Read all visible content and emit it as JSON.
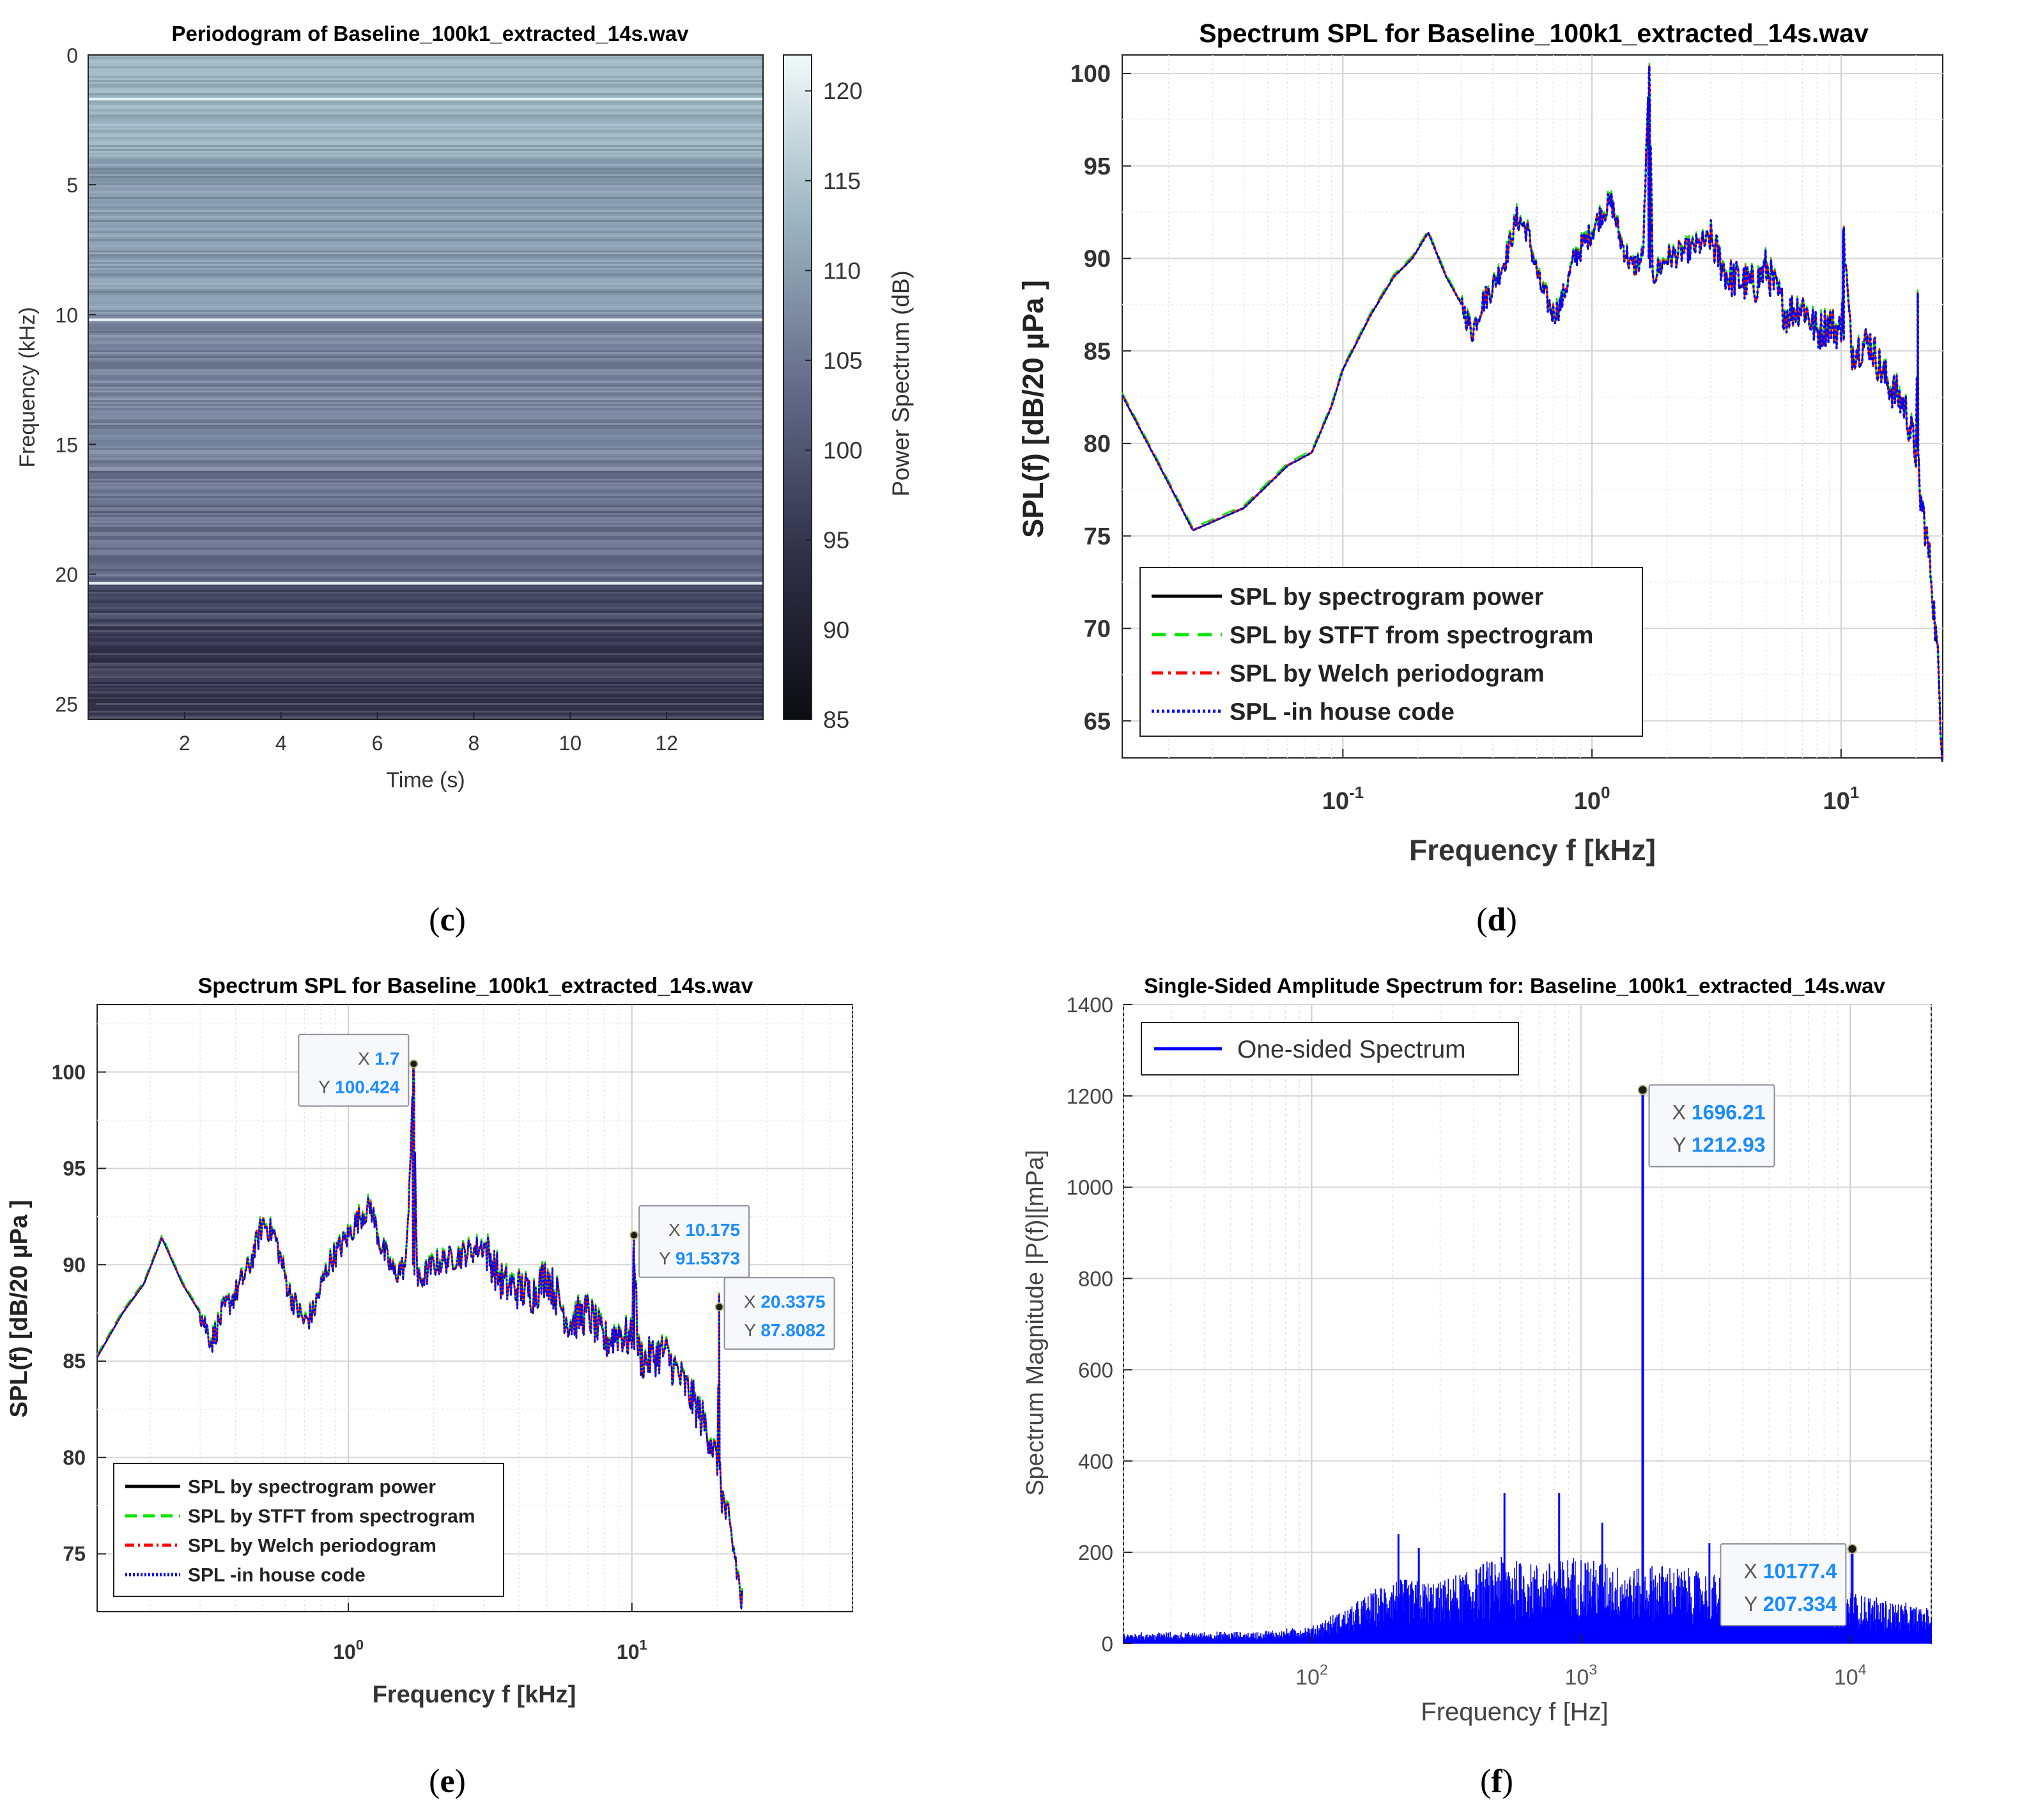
{
  "chart_data": [
    {
      "panel": "c",
      "type": "heatmap",
      "title": "Periodogram of Baseline_100k1_extracted_14s.wav",
      "xlabel": "Time (s)",
      "ylabel": "Frequency (kHz)",
      "colorbar_label": "Power Spectrum (dB)",
      "xlim": [
        0,
        14
      ],
      "ylim": [
        0,
        25.6
      ],
      "xticks": [
        2,
        4,
        6,
        8,
        10,
        12
      ],
      "yticks": [
        0,
        5,
        10,
        15,
        20,
        25
      ],
      "clim": [
        85,
        122
      ],
      "cticks": [
        85,
        90,
        95,
        100,
        105,
        110,
        115,
        120
      ],
      "bands": [
        {
          "y0": 0,
          "y1": 4,
          "db": 113
        },
        {
          "y0": 4,
          "y1": 10,
          "db": 110
        },
        {
          "y0": 10,
          "y1": 16,
          "db": 107
        },
        {
          "y0": 16,
          "y1": 20.3,
          "db": 104
        },
        {
          "y0": 20.3,
          "y1": 22,
          "db": 98
        },
        {
          "y0": 22,
          "y1": 25.6,
          "db": 95
        }
      ],
      "tonal_lines_khz": [
        1.7,
        10.2,
        20.35
      ]
    },
    {
      "panel": "d",
      "type": "line",
      "xscale": "log",
      "title": "Spectrum SPL  for Baseline_100k1_extracted_14s.wav",
      "xlabel": "Frequency f [kHz]",
      "ylabel": "SPL(f) [dB/20 µPa ]",
      "xlim": [
        0.013,
        25.6
      ],
      "ylim": [
        63,
        101
      ],
      "xtick_values": [
        0.1,
        1,
        10
      ],
      "xtick_bases": [
        "10",
        "10",
        "10"
      ],
      "xtick_exps": [
        "-1",
        "0",
        "1"
      ],
      "yticks": [
        65,
        70,
        75,
        80,
        85,
        90,
        95,
        100
      ],
      "legend_position": "lower-left",
      "series": [
        {
          "name": "SPL by spectrogram power",
          "color": "#000000",
          "dash": ""
        },
        {
          "name": "SPL by STFT from spectrogram",
          "color": "#00e600",
          "dash": "22,14"
        },
        {
          "name": "SPL by Welch periodogram",
          "color": "#ff0000",
          "dash": "18,8,4,8"
        },
        {
          "name": "SPL -in house code",
          "color": "#0000ff",
          "dash": "4,4"
        }
      ],
      "curve": {
        "x": [
          0.013,
          0.018,
          0.025,
          0.04,
          0.06,
          0.075,
          0.09,
          0.1,
          0.13,
          0.16,
          0.19,
          0.22,
          0.26,
          0.3,
          0.33,
          0.36,
          0.4,
          0.45,
          0.5,
          0.55,
          0.62,
          0.7,
          0.75,
          0.85,
          1.0,
          1.1,
          1.2,
          1.3,
          1.45,
          1.6,
          1.7,
          1.75,
          2.0,
          2.5,
          3.0,
          3.5,
          4.5,
          5.0,
          6.0,
          7.0,
          8.0,
          9.0,
          10.0,
          10.2,
          11.0,
          13.0,
          15.0,
          18.0,
          20.0,
          20.34,
          20.5,
          21.5,
          23.0,
          24.5,
          25.5
        ],
        "y": [
          82.6,
          79,
          75.3,
          76.5,
          78.8,
          79.5,
          82,
          84,
          87,
          89,
          90,
          91.4,
          89,
          87.5,
          86,
          87.5,
          88.5,
          90,
          92.2,
          91.5,
          88.5,
          87,
          87.5,
          90,
          91.5,
          92.5,
          93,
          91,
          89.5,
          90,
          100.4,
          89,
          90,
          90.5,
          91,
          89,
          88.5,
          89.5,
          87,
          87.5,
          86,
          86.5,
          86,
          91.5,
          85,
          85.5,
          83.5,
          82,
          79.5,
          87.8,
          77.5,
          76,
          73,
          68,
          63.5
        ]
      },
      "noise_from_khz": 0.3
    },
    {
      "panel": "e",
      "type": "line",
      "xscale": "log",
      "title": "Spectrum SPL  for Baseline_100k1_extracted_14s.wav",
      "xlabel": "Frequency f [kHz]",
      "ylabel": "SPL(f) [dB/20 µPa ]",
      "xlim": [
        0.13,
        60
      ],
      "ylim": [
        72,
        103.5
      ],
      "xtick_values": [
        1,
        10
      ],
      "xtick_bases": [
        "10",
        "10"
      ],
      "xtick_exps": [
        "0",
        "1"
      ],
      "yticks": [
        75,
        80,
        85,
        90,
        95,
        100
      ],
      "legend_position": "lower-left",
      "series": [
        {
          "name": "SPL by spectrogram power",
          "color": "#000000",
          "dash": ""
        },
        {
          "name": "SPL by STFT from spectrogram",
          "color": "#00e600",
          "dash": "18,10"
        },
        {
          "name": "SPL by Welch periodogram",
          "color": "#ff0000",
          "dash": "14,6,3,6"
        },
        {
          "name": "SPL -in house code",
          "color": "#0000ff",
          "dash": "3,3"
        }
      ],
      "curve": {
        "x": [
          0.13,
          0.16,
          0.19,
          0.22,
          0.26,
          0.3,
          0.33,
          0.36,
          0.4,
          0.45,
          0.5,
          0.55,
          0.62,
          0.7,
          0.75,
          0.85,
          1.0,
          1.1,
          1.2,
          1.3,
          1.45,
          1.6,
          1.7,
          1.75,
          2.0,
          2.5,
          3.0,
          3.5,
          4.5,
          5.0,
          6.0,
          7.0,
          8.0,
          9.0,
          10.0,
          10.175,
          10.5,
          11.0,
          13.0,
          15.0,
          17.0,
          19.0,
          20.0,
          20.3375,
          20.5,
          21.5,
          23.0,
          24.5
        ],
        "y": [
          85.2,
          87.5,
          89,
          91.4,
          89,
          87.5,
          86,
          87.5,
          88.5,
          90,
          92.2,
          91.5,
          88.5,
          87,
          87.5,
          90,
          91.5,
          92.5,
          93,
          91,
          89.5,
          90,
          100.424,
          89,
          90,
          90.5,
          91,
          89,
          88.5,
          89.5,
          87,
          87.5,
          86,
          86.5,
          86,
          91.5373,
          85.5,
          85,
          85.5,
          84,
          82.5,
          81,
          79.5,
          87.8082,
          78.5,
          77,
          75,
          72.3
        ]
      },
      "noise_from_khz": 0.3,
      "datatips": [
        {
          "x_label": "X",
          "x_val": "1.7",
          "y_label": "Y",
          "y_val": "100.424",
          "fx": 1.7,
          "fy": 100.424,
          "side": "left"
        },
        {
          "x_label": "X",
          "x_val": "10.175",
          "y_label": "Y",
          "y_val": "91.5373",
          "fx": 10.175,
          "fy": 91.5373,
          "side": "right"
        },
        {
          "x_label": "X",
          "x_val": "20.3375",
          "y_label": "Y",
          "y_val": "87.8082",
          "fx": 20.3375,
          "fy": 87.8082,
          "side": "right"
        }
      ]
    },
    {
      "panel": "f",
      "type": "line",
      "xscale": "log",
      "title": "Single-Sided Amplitude Spectrum for: Baseline_100k1_extracted_14s.wav",
      "xlabel": "Frequency f [Hz]",
      "ylabel": "Spectrum Magnitude |P(f)|[mPa]",
      "xlim": [
        20,
        20000
      ],
      "ylim": [
        0,
        1400
      ],
      "xtick_values": [
        100,
        1000,
        10000
      ],
      "xtick_bases": [
        "10",
        "10",
        "10"
      ],
      "xtick_exps": [
        "2",
        "3",
        "4"
      ],
      "yticks": [
        0,
        200,
        400,
        600,
        800,
        1000,
        1200,
        1400
      ],
      "legend_position": "top-left",
      "series": [
        {
          "name": "One-sided Spectrum",
          "color": "#0000ff",
          "dash": ""
        }
      ],
      "envelope": {
        "x": [
          20,
          60,
          100,
          150,
          200,
          300,
          500,
          700,
          1000,
          1500,
          2000,
          3000,
          5000,
          10000,
          20000
        ],
        "y": [
          18,
          20,
          32,
          90,
          140,
          130,
          190,
          170,
          190,
          160,
          170,
          150,
          130,
          110,
          70
        ]
      },
      "peaks": [
        {
          "x": 210,
          "y": 240
        },
        {
          "x": 250,
          "y": 210
        },
        {
          "x": 520,
          "y": 330
        },
        {
          "x": 830,
          "y": 330
        },
        {
          "x": 1200,
          "y": 265
        },
        {
          "x": 3000,
          "y": 220
        },
        {
          "x": 5000,
          "y": 190
        }
      ],
      "datatips": [
        {
          "x_label": "X",
          "x_val": "1696.21",
          "y_label": "Y",
          "y_val": "1212.93",
          "fx": 1696.21,
          "fy": 1212.93,
          "side": "right"
        },
        {
          "x_label": "X",
          "x_val": "10177.4",
          "y_label": "Y",
          "y_val": "207.334",
          "fx": 10177.4,
          "fy": 207.334,
          "side": "left"
        }
      ]
    }
  ],
  "panel_labels": {
    "c": {
      "open": "(",
      "letter": "c",
      "close": ")"
    },
    "d": {
      "open": "(",
      "letter": "d",
      "close": ")"
    },
    "e": {
      "open": "(",
      "letter": "e",
      "close": ")"
    },
    "f": {
      "open": "(",
      "letter": "f",
      "close": ")"
    }
  }
}
